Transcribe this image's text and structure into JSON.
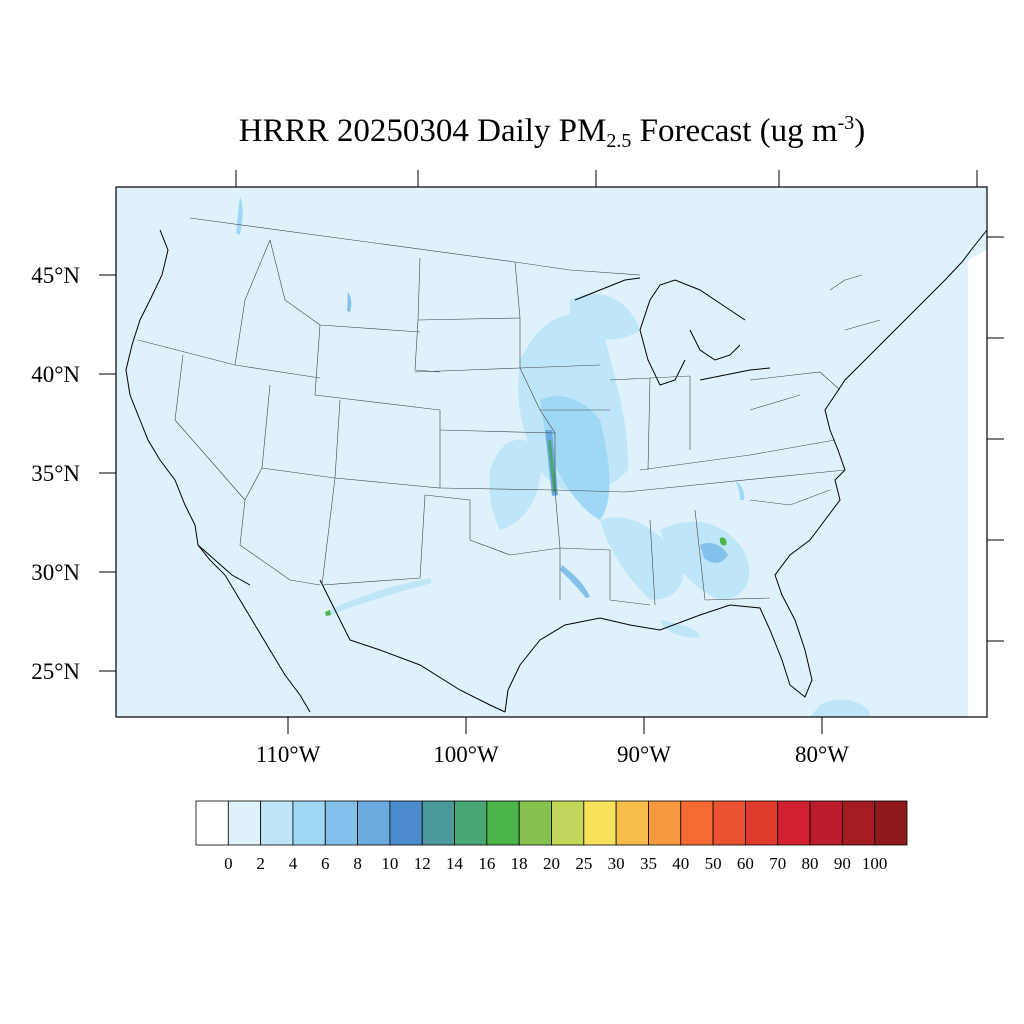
{
  "title": {
    "prefix": "HRRR 20250304 Daily PM",
    "subscript": "2.5",
    "middle": " Forecast (ug m",
    "superscript": "-3",
    "suffix": ")"
  },
  "map": {
    "lat_labels": [
      "45°N",
      "40°N",
      "35°N",
      "30°N",
      "25°N"
    ],
    "lon_labels": [
      "110°W",
      "100°W",
      "90°W",
      "80°W"
    ],
    "background_color": "#dff2fb"
  },
  "colorbar": {
    "tick_labels": [
      "0",
      "2",
      "4",
      "6",
      "8",
      "10",
      "12",
      "14",
      "16",
      "18",
      "20",
      "25",
      "30",
      "35",
      "40",
      "50",
      "60",
      "70",
      "80",
      "90",
      "100"
    ],
    "colors": [
      "#ffffff",
      "#dff2fb",
      "#bfe6f8",
      "#9fd8f5",
      "#84c1ea",
      "#6aaadf",
      "#4b8cce",
      "#4a9a9c",
      "#48a775",
      "#4bb54a",
      "#85c24d",
      "#c2d65a",
      "#f8e25b",
      "#f8bd49",
      "#f6993e",
      "#f56a32",
      "#ea5331",
      "#e03a2c",
      "#d3202e",
      "#bb1b2a",
      "#a41b22",
      "#8e1719"
    ]
  }
}
